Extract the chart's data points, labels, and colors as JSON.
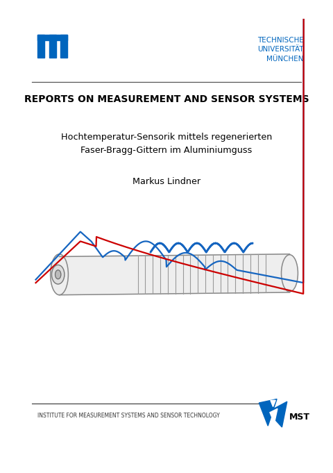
{
  "background_color": "#ffffff",
  "tum_blue": "#0065BD",
  "text_color": "#000000",
  "gray_color": "#555555",
  "header_text_right": "TECHNISCHE\nUNIVERSITÄT\nMÜNCHEN",
  "separator_color": "#555555",
  "report_series": "REPORTS ON MEASUREMENT AND SENSOR SYSTEMS",
  "title_line1": "Hochtemperatur-Sensorik mittels regenerierten",
  "title_line2": "Faser-Bragg-Gittern im Aluminiumguss",
  "author": "Markus Lindner",
  "footer_text": "INSTITUTE FOR MEASUREMENT SYSTEMS AND SENSOR TECHNOLOGY",
  "blue_color": "#1565C0",
  "red_color": "#CC0000",
  "light_gray": "#cccccc"
}
